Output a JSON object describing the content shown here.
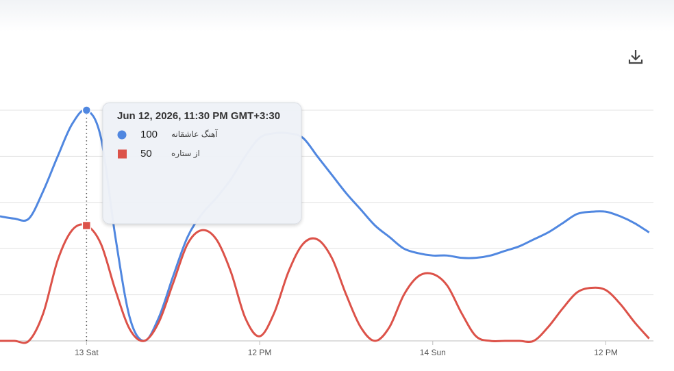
{
  "chart_data": {
    "type": "line",
    "categories": [
      null,
      null,
      null,
      null,
      null,
      null,
      "13 Sat",
      null,
      null,
      null,
      null,
      null,
      null,
      null,
      null,
      null,
      null,
      null,
      "12 PM",
      null,
      null,
      null,
      null,
      null,
      null,
      null,
      null,
      null,
      null,
      null,
      "14 Sun",
      null,
      null,
      null,
      null,
      null,
      null,
      null,
      null,
      null,
      null,
      null,
      "12 PM",
      null,
      null,
      null
    ],
    "series": [
      {
        "name": "آهنگ عاشقانه",
        "color": "#5087e0",
        "values": [
          54,
          53,
          53,
          65,
          80,
          94,
          100,
          88,
          45,
          10,
          0,
          10,
          28,
          45,
          55,
          62,
          70,
          80,
          88,
          90,
          90,
          88,
          80,
          72,
          64,
          57,
          50,
          45,
          40,
          38,
          37,
          37,
          36,
          36,
          37,
          39,
          41,
          44,
          47,
          51,
          55,
          56,
          56,
          54,
          51,
          47
        ]
      },
      {
        "name": "از ستاره",
        "color": "#dc5249",
        "values": [
          0,
          0,
          0,
          12,
          35,
          48,
          50,
          42,
          22,
          5,
          0,
          8,
          25,
          42,
          48,
          44,
          30,
          10,
          2,
          12,
          30,
          42,
          44,
          36,
          20,
          6,
          0,
          6,
          20,
          28,
          29,
          24,
          12,
          2,
          0,
          0,
          0,
          0,
          6,
          14,
          21,
          23,
          22,
          16,
          8,
          1
        ]
      }
    ],
    "ylim": [
      0,
      100
    ],
    "yticks": [
      0,
      20,
      40,
      60,
      80,
      100
    ],
    "grid": true,
    "tooltip": {
      "title": "Jun 12, 2026, 11:30 PM GMT+3:30"
    }
  }
}
